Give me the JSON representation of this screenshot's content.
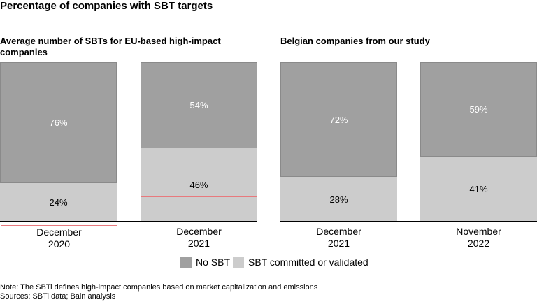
{
  "title": "Percentage of companies with SBT targets",
  "colors": {
    "no_sbt": "#a0a0a0",
    "sbt": "#cccccc",
    "highlight": "#e8797d"
  },
  "chart_data": [
    {
      "type": "bar",
      "stacked": true,
      "title": "Average number of SBTs for EU-based high-impact companies",
      "categories": [
        "December\n2020",
        "December\n2021"
      ],
      "series": [
        {
          "name": "SBT committed or validated",
          "values": [
            24,
            46
          ],
          "labels": [
            "24%",
            "46%"
          ]
        },
        {
          "name": "No SBT",
          "values": [
            76,
            54
          ],
          "labels": [
            "76%",
            "54%"
          ]
        }
      ],
      "ylim": [
        0,
        100
      ]
    },
    {
      "type": "bar",
      "stacked": true,
      "title": "Belgian companies from our study",
      "categories": [
        "December\n2021",
        "November\n2022"
      ],
      "series": [
        {
          "name": "SBT committed or validated",
          "values": [
            28,
            41
          ],
          "labels": [
            "28%",
            "41%"
          ]
        },
        {
          "name": "No SBT",
          "values": [
            72,
            59
          ],
          "labels": [
            "72%",
            "59%"
          ]
        }
      ],
      "ylim": [
        0,
        100
      ]
    }
  ],
  "legend": [
    "No SBT",
    "SBT committed or validated"
  ],
  "note": "Note: The SBTi defines high-impact companies based on market capitalization and emissions",
  "sources": "Sources: SBTi data; Bain analysis"
}
